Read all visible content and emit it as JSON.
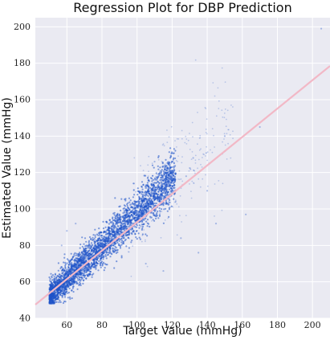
{
  "chart_data": {
    "type": "scatter",
    "title": "Regression Plot for DBP Prediction",
    "xlabel": "Target Value (mmHg)",
    "ylabel": "Estimated Value (mmHg)",
    "xlim": [
      42,
      210
    ],
    "ylim": [
      40,
      205
    ],
    "x_ticks": [
      60,
      80,
      100,
      120,
      140,
      160,
      180,
      200
    ],
    "y_ticks": [
      40,
      60,
      80,
      100,
      120,
      140,
      160,
      180,
      200
    ],
    "grid": true,
    "background_color": "#eaeaf2",
    "grid_color": "#ffffff",
    "point_color": "#1f54c8",
    "line_color": "#f2b8c6",
    "regression_line": {
      "x": [
        42,
        210
      ],
      "y": [
        47.5,
        178.5
      ]
    },
    "density_band": {
      "x_range": [
        50,
        122
      ],
      "center_slope": 0.92,
      "center_intercept": 6,
      "spread": 7
    },
    "outliers": [
      {
        "x": 205,
        "y": 199
      },
      {
        "x": 170,
        "y": 145
      },
      {
        "x": 162,
        "y": 97
      },
      {
        "x": 150,
        "y": 140
      },
      {
        "x": 145,
        "y": 92
      },
      {
        "x": 132,
        "y": 128
      },
      {
        "x": 128,
        "y": 118
      },
      {
        "x": 135,
        "y": 76
      },
      {
        "x": 125,
        "y": 84
      },
      {
        "x": 140,
        "y": 110
      },
      {
        "x": 115,
        "y": 66
      },
      {
        "x": 110,
        "y": 126
      },
      {
        "x": 60,
        "y": 88
      },
      {
        "x": 57,
        "y": 80
      },
      {
        "x": 65,
        "y": 92
      },
      {
        "x": 118,
        "y": 120
      },
      {
        "x": 122,
        "y": 104
      },
      {
        "x": 105,
        "y": 70
      }
    ]
  }
}
